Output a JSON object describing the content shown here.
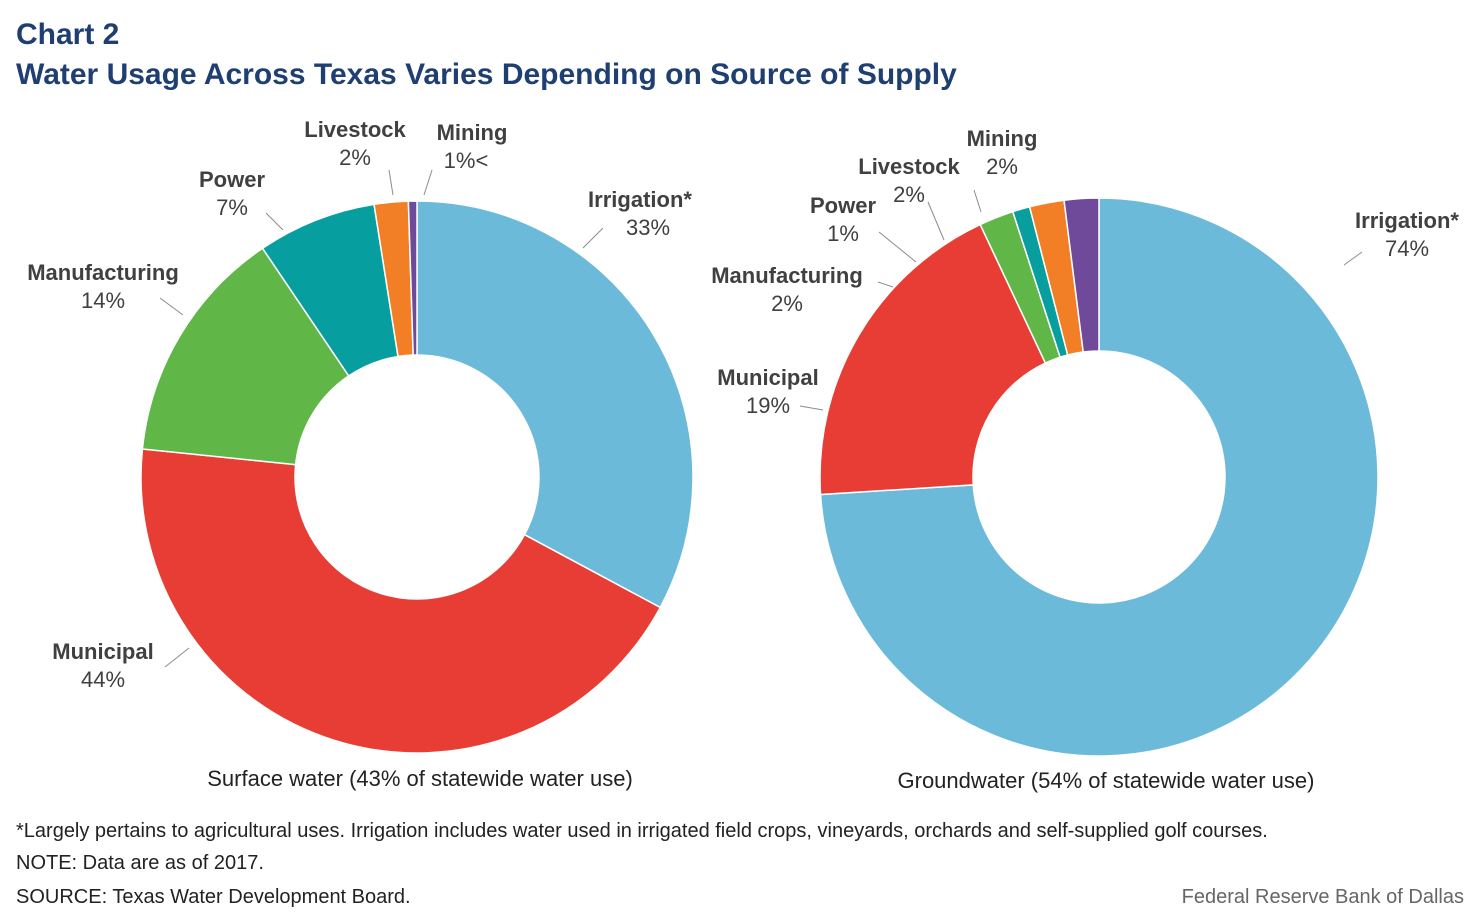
{
  "header": {
    "title": "Chart 2",
    "subtitle": "Water Usage Across Texas Varies Depending on Source of Supply"
  },
  "chart_data": [
    {
      "type": "pie",
      "title": "Surface water (43% of statewide water use)",
      "categories": [
        "Irrigation*",
        "Municipal",
        "Manufacturing",
        "Power",
        "Livestock",
        "Mining"
      ],
      "values": [
        33,
        44,
        14,
        7,
        2,
        0.5
      ],
      "value_labels": [
        "33%",
        "44%",
        "14%",
        "7%",
        "2%",
        "1%<"
      ],
      "colors": [
        "#6bbad9",
        "#e73d34",
        "#60b747",
        "#079e9f",
        "#f27f25",
        "#6f4a9b"
      ]
    },
    {
      "type": "pie",
      "title": "Groundwater (54% of statewide water use)",
      "categories": [
        "Irrigation*",
        "Municipal",
        "Manufacturing",
        "Power",
        "Livestock",
        "Mining"
      ],
      "values": [
        74,
        19,
        2,
        1,
        2,
        2
      ],
      "value_labels": [
        "74%",
        "19%",
        "2%",
        "1%",
        "2%",
        "2%"
      ],
      "colors": [
        "#6bbad9",
        "#e73d34",
        "#60b747",
        "#079e9f",
        "#f27f25",
        "#6f4a9b"
      ]
    }
  ],
  "footer": {
    "footnote": "*Largely pertains to agricultural uses. Irrigation includes water used in irrigated field crops, vineyards, orchards and self-supplied golf courses.",
    "note": "NOTE: Data are as of 2017.",
    "source": "SOURCE: Texas Water Development Board.",
    "credit": "Federal Reserve Bank of Dallas"
  }
}
